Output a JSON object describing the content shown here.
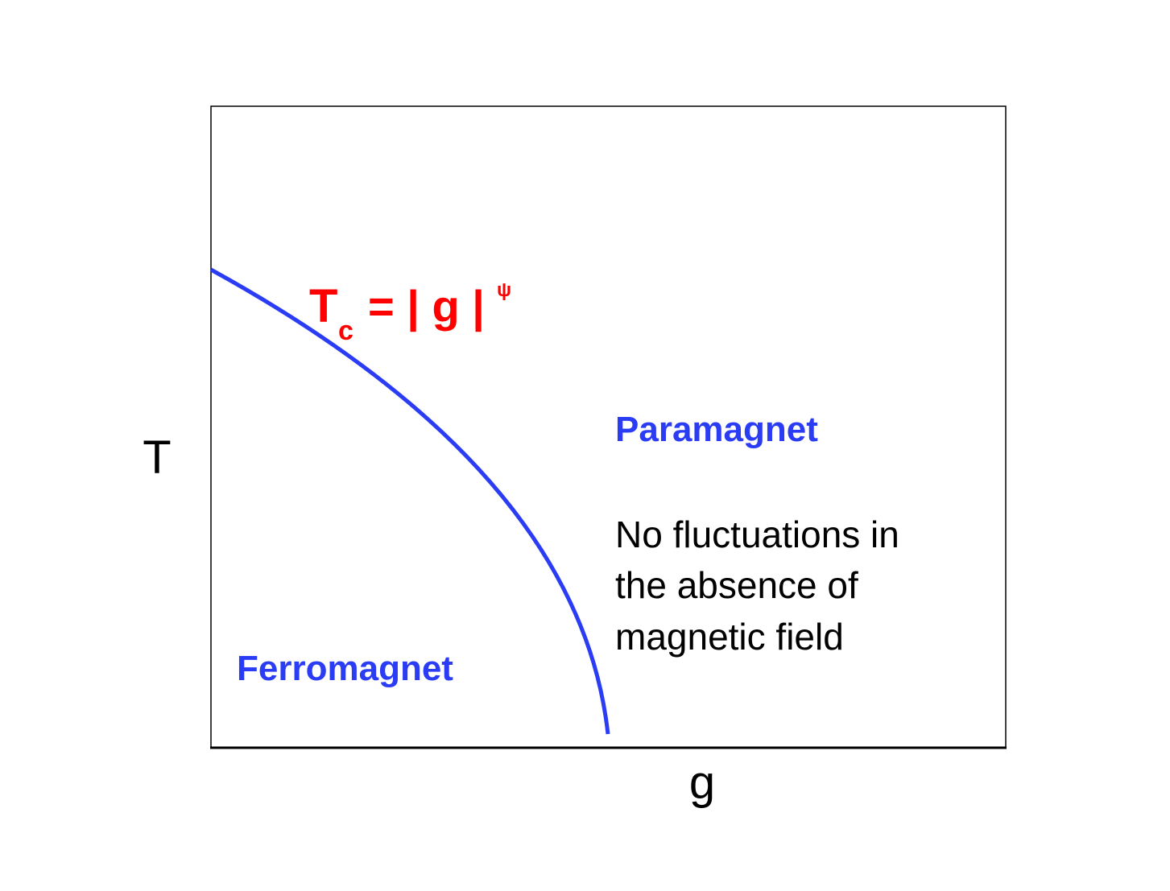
{
  "axes": {
    "y_label": "T",
    "x_label": "g"
  },
  "regions": [
    {
      "label": "Paramagnet",
      "note": [
        "No fluctuations in",
        "the absence of",
        "magnetic field"
      ]
    },
    {
      "label": "Ferromagnet"
    }
  ],
  "boundary": {
    "formula": {
      "base": "T",
      "subscript": "c",
      "body": "= | g |",
      "superscript": "ψ"
    }
  }
}
